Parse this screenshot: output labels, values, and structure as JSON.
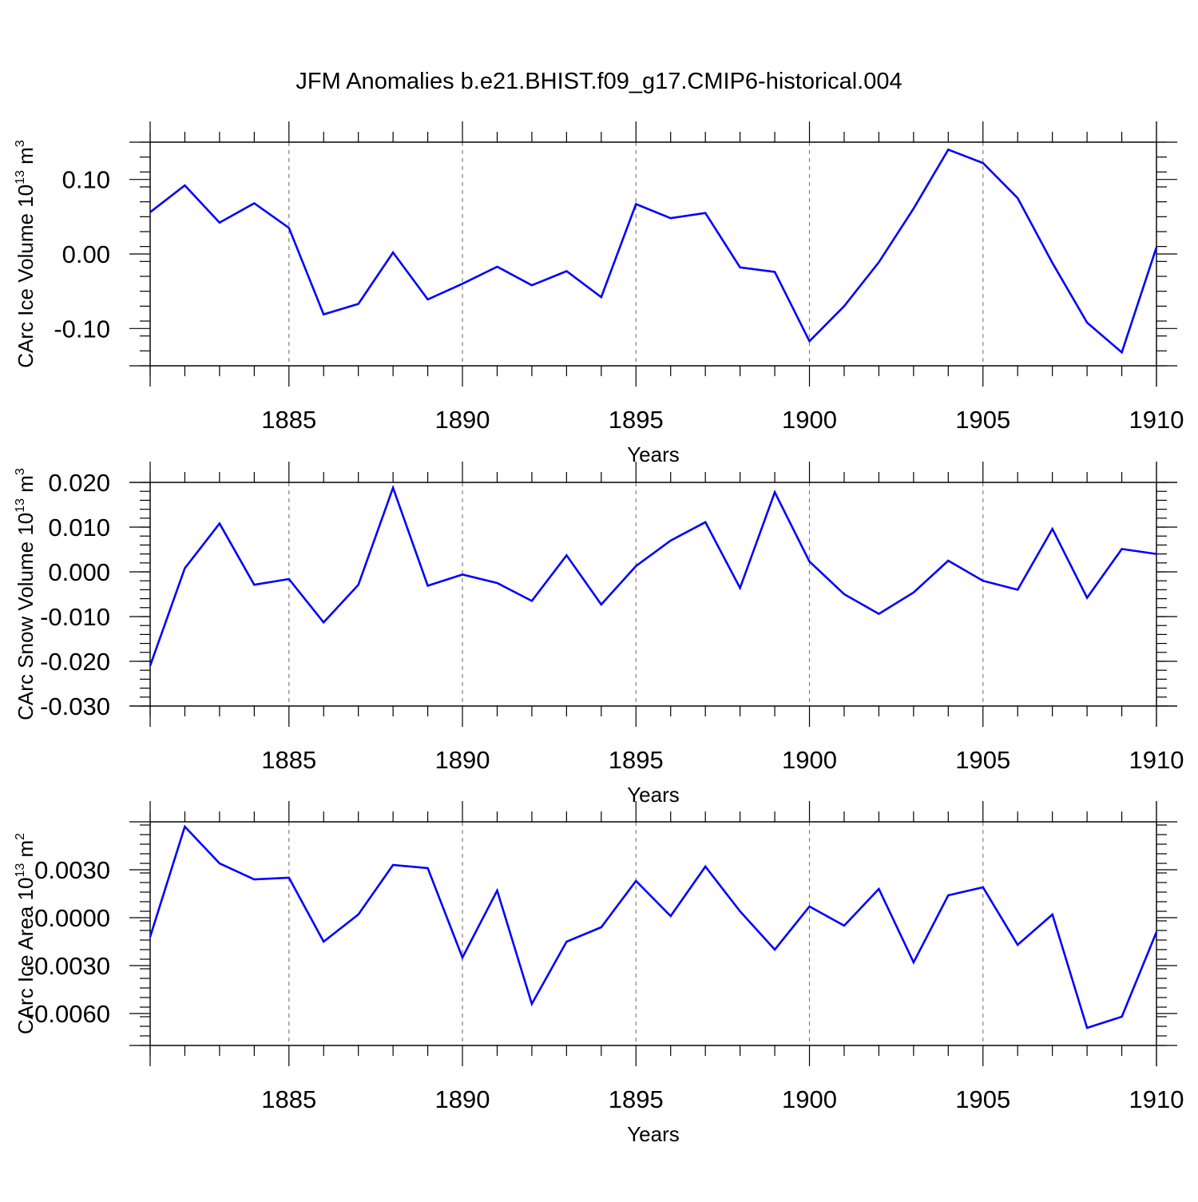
{
  "title": "JFM Anomalies b.e21.BHIST.f09_g17.CMIP6-historical.004",
  "colors": {
    "line": "#0000ff",
    "grid": "#808080",
    "axis": "#000000"
  },
  "chart_data": [
    {
      "type": "line",
      "title": "JFM Anomalies b.e21.BHIST.f09_g17.CMIP6-historical.004",
      "xlabel": "Years",
      "ylabel_main": "CArc Ice Volume 10",
      "ylabel_sup": "13",
      "ylabel_unit": " m",
      "ylabel_unit_sup": "3",
      "xlim": [
        1881,
        1910
      ],
      "ylim": [
        -0.15,
        0.15
      ],
      "x_ticks": [
        1885,
        1890,
        1895,
        1900,
        1905,
        1910
      ],
      "x_tick_labels": [
        "1885",
        "1890",
        "1895",
        "1900",
        "1905",
        "1910"
      ],
      "y_ticks": [
        -0.1,
        0.0,
        0.1
      ],
      "y_tick_labels": [
        "-0.10",
        "0.00",
        "0.10"
      ],
      "y_minor_step": 0.02,
      "grid": "vertical dashed at major x ticks",
      "x": [
        1881,
        1882,
        1883,
        1884,
        1885,
        1886,
        1887,
        1888,
        1889,
        1890,
        1891,
        1892,
        1893,
        1894,
        1895,
        1896,
        1897,
        1898,
        1899,
        1900,
        1901,
        1902,
        1903,
        1904,
        1905,
        1906,
        1907,
        1908,
        1909,
        1910
      ],
      "values": [
        0.056,
        0.092,
        0.042,
        0.068,
        0.035,
        -0.081,
        -0.067,
        0.002,
        -0.061,
        -0.04,
        -0.017,
        -0.042,
        -0.023,
        -0.058,
        0.067,
        0.048,
        0.055,
        -0.018,
        -0.024,
        -0.117,
        -0.07,
        -0.011,
        0.061,
        0.14,
        0.122,
        0.075,
        -0.012,
        -0.092,
        -0.132,
        0.009
      ]
    },
    {
      "type": "line",
      "xlabel": "Years",
      "ylabel_main": "CArc Snow Volume 10",
      "ylabel_sup": "13",
      "ylabel_unit": " m",
      "ylabel_unit_sup": "3",
      "xlim": [
        1881,
        1910
      ],
      "ylim": [
        -0.03,
        0.02
      ],
      "x_ticks": [
        1885,
        1890,
        1895,
        1900,
        1905,
        1910
      ],
      "x_tick_labels": [
        "1885",
        "1890",
        "1895",
        "1900",
        "1905",
        "1910"
      ],
      "y_ticks": [
        -0.03,
        -0.02,
        -0.01,
        0.0,
        0.01,
        0.02
      ],
      "y_tick_labels": [
        "-0.030",
        "-0.020",
        "-0.010",
        "0.000",
        "0.010",
        "0.020"
      ],
      "y_minor_step": 0.002,
      "grid": "vertical dashed at major x ticks",
      "x": [
        1881,
        1882,
        1883,
        1884,
        1885,
        1886,
        1887,
        1888,
        1889,
        1890,
        1891,
        1892,
        1893,
        1894,
        1895,
        1896,
        1897,
        1898,
        1899,
        1900,
        1901,
        1902,
        1903,
        1904,
        1905,
        1906,
        1907,
        1908,
        1909,
        1910
      ],
      "values": [
        -0.021,
        0.0008,
        0.0108,
        -0.0029,
        -0.0016,
        -0.0113,
        -0.0029,
        0.0188,
        -0.0031,
        -0.0006,
        -0.0025,
        -0.0065,
        0.0037,
        -0.0073,
        0.0013,
        0.007,
        0.0111,
        -0.0036,
        0.0178,
        0.0023,
        -0.005,
        -0.0094,
        -0.0046,
        0.0025,
        -0.002,
        -0.004,
        0.0096,
        -0.0058,
        0.0051,
        0.004
      ]
    },
    {
      "type": "line",
      "xlabel": "Years",
      "ylabel_main": "CArc Ice Area 10",
      "ylabel_sup": "13",
      "ylabel_unit": " m",
      "ylabel_unit_sup": "2",
      "xlim": [
        1881,
        1910
      ],
      "ylim": [
        -0.008,
        0.006
      ],
      "x_ticks": [
        1885,
        1890,
        1895,
        1900,
        1905,
        1910
      ],
      "x_tick_labels": [
        "1885",
        "1890",
        "1895",
        "1900",
        "1905",
        "1910"
      ],
      "y_ticks": [
        -0.006,
        -0.003,
        0.0,
        0.003
      ],
      "y_tick_labels": [
        "-0.0060",
        "-0.0030",
        "0.0000",
        "0.0030"
      ],
      "y_minor_step": 0.0006,
      "grid": "vertical dashed at major x ticks",
      "x": [
        1881,
        1882,
        1883,
        1884,
        1885,
        1886,
        1887,
        1888,
        1889,
        1890,
        1891,
        1892,
        1893,
        1894,
        1895,
        1896,
        1897,
        1898,
        1899,
        1900,
        1901,
        1902,
        1903,
        1904,
        1905,
        1906,
        1907,
        1908,
        1909,
        1910
      ],
      "values": [
        -0.0012,
        0.0057,
        0.0034,
        0.0024,
        0.0025,
        -0.0015,
        0.0002,
        0.0033,
        0.0031,
        -0.0025,
        0.0017,
        -0.0054,
        -0.0015,
        -0.0006,
        0.0023,
        0.0001,
        0.0032,
        0.0004,
        -0.002,
        0.0007,
        -0.0005,
        0.0018,
        -0.0028,
        0.0014,
        0.0019,
        -0.0017,
        0.0002,
        -0.0069,
        -0.0062,
        -0.0009
      ]
    }
  ]
}
